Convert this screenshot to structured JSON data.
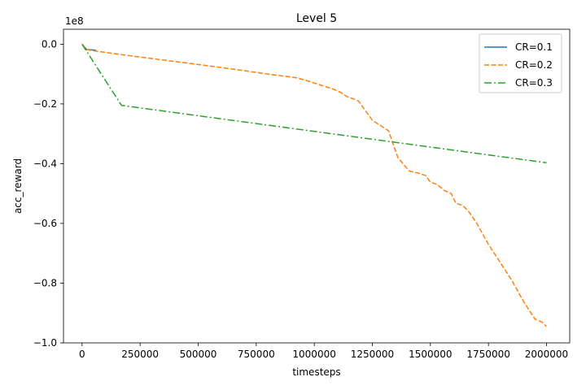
{
  "chart_data": {
    "type": "line",
    "title": "Level 5",
    "xlabel": "timesteps",
    "ylabel": "acc_reward",
    "offset_text": "1e8",
    "xlim": [
      -80000,
      2100000
    ],
    "ylim": [
      -1.0,
      0.05
    ],
    "xticks": [
      0,
      250000,
      500000,
      750000,
      1000000,
      1250000,
      1500000,
      1750000,
      2000000
    ],
    "xtick_labels": [
      "0",
      "250000",
      "500000",
      "750000",
      "1000000",
      "1250000",
      "1500000",
      "1750000",
      "2000000"
    ],
    "yticks": [
      0.0,
      -0.2,
      -0.4,
      -0.6,
      -0.8,
      -1.0
    ],
    "ytick_labels": [
      "0.0",
      "−0.2",
      "−0.4",
      "−0.6",
      "−0.8",
      "−1.0"
    ],
    "grid": false,
    "legend_position": "top-right",
    "series": [
      {
        "name": "CR=0.1",
        "color": "#1f77b4",
        "style": "solid",
        "x": [
          0,
          20000,
          60000
        ],
        "y": [
          0.0,
          -0.018,
          -0.02
        ]
      },
      {
        "name": "CR=0.2",
        "color": "#ff7f0e",
        "style": "dashed",
        "x": [
          0,
          20000,
          50000,
          200000,
          400000,
          600000,
          800000,
          920000,
          960000,
          1000000,
          1080000,
          1110000,
          1140000,
          1190000,
          1250000,
          1270000,
          1300000,
          1320000,
          1360000,
          1410000,
          1450000,
          1480000,
          1500000,
          1530000,
          1560000,
          1590000,
          1610000,
          1640000,
          1670000,
          1700000,
          1750000,
          1800000,
          1850000,
          1900000,
          1950000,
          1980000,
          2000000
        ],
        "y": [
          0.0,
          -0.018,
          -0.022,
          -0.038,
          -0.058,
          -0.078,
          -0.1,
          -0.112,
          -0.12,
          -0.13,
          -0.15,
          -0.16,
          -0.175,
          -0.19,
          -0.255,
          -0.265,
          -0.28,
          -0.29,
          -0.38,
          -0.425,
          -0.432,
          -0.44,
          -0.462,
          -0.47,
          -0.49,
          -0.5,
          -0.533,
          -0.54,
          -0.565,
          -0.6,
          -0.67,
          -0.73,
          -0.79,
          -0.86,
          -0.92,
          -0.93,
          -0.945
        ]
      },
      {
        "name": "CR=0.3",
        "color": "#2ca02c",
        "style": "dashdot",
        "x": [
          0,
          170000,
          2000000
        ],
        "y": [
          0.0,
          -0.205,
          -0.397
        ]
      }
    ]
  }
}
